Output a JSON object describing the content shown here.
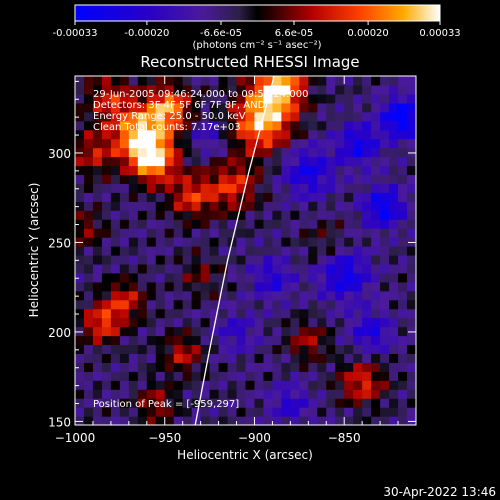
{
  "chart_data": {
    "type": "heatmap",
    "title": "Reconstructed RHESSI Image",
    "colorbar": {
      "ticks": [
        "-0.00033",
        "-0.00020",
        "-6.6e-05",
        "6.6e-05",
        "0.00020",
        "0.00033"
      ],
      "range": [
        -0.00033,
        0.00033
      ],
      "unit_label": "(photons cm⁻² s⁻¹ asec⁻²)"
    },
    "xlabel": "Heliocentric X (arcsec)",
    "ylabel": "Heliocentric Y (arcsec)",
    "xlim": [
      -1000,
      -810
    ],
    "ylim": [
      148,
      343
    ],
    "xticks": [
      -1000,
      -950,
      -900,
      -850
    ],
    "xtick_labels": [
      "−1000",
      "−950",
      "−900",
      "−850"
    ],
    "yticks": [
      150,
      200,
      250,
      300
    ],
    "yticks_labels": [
      "150",
      "200",
      "250",
      "300"
    ],
    "info_lines": [
      "29-Jun-2005 09:46:24.000 to 09:52:24.000",
      "Detectors: 3F 4F 5F 6F 7F 8F, AND",
      "Energy Range: 25.0 - 50.0 keV",
      "Clean    Total counts: 7.17e+03"
    ],
    "peak_label": "Position of Peak = [-959,297]",
    "peak": [
      -959,
      297
    ],
    "limb_curve": [
      [
        -933,
        148
      ],
      [
        -925,
        190
      ],
      [
        -915,
        240
      ],
      [
        -903,
        290
      ],
      [
        -889,
        343
      ]
    ],
    "hot_spots": [
      {
        "x": -964,
        "y": 310,
        "v": 0.00033,
        "s": 10
      },
      {
        "x": -956,
        "y": 296,
        "v": 0.00033,
        "s": 9
      },
      {
        "x": -948,
        "y": 325,
        "v": 0.0003,
        "s": 9
      },
      {
        "x": -896,
        "y": 318,
        "v": 0.00033,
        "s": 12
      },
      {
        "x": -886,
        "y": 338,
        "v": 0.00033,
        "s": 10
      },
      {
        "x": -912,
        "y": 282,
        "v": 0.0002,
        "s": 10
      },
      {
        "x": -935,
        "y": 276,
        "v": 0.0002,
        "s": 9
      },
      {
        "x": -980,
        "y": 330,
        "v": 0.00018,
        "s": 10
      },
      {
        "x": -990,
        "y": 300,
        "v": 0.00016,
        "s": 9
      },
      {
        "x": -985,
        "y": 205,
        "v": 0.00022,
        "s": 8
      },
      {
        "x": -972,
        "y": 218,
        "v": 0.00018,
        "s": 8
      },
      {
        "x": -940,
        "y": 188,
        "v": 0.00016,
        "s": 8
      },
      {
        "x": -955,
        "y": 160,
        "v": 0.00014,
        "s": 8
      },
      {
        "x": -840,
        "y": 172,
        "v": 0.0002,
        "s": 9
      },
      {
        "x": -870,
        "y": 195,
        "v": 0.00014,
        "s": 8
      },
      {
        "x": -995,
        "y": 258,
        "v": 0.00012,
        "s": 8
      },
      {
        "x": -930,
        "y": 232,
        "v": 0.0001,
        "s": 8
      },
      {
        "x": -860,
        "y": 250,
        "v": 8e-05,
        "s": 9
      }
    ],
    "cold_spots": [
      {
        "x": -818,
        "y": 320,
        "v": -0.0003,
        "s": 8
      },
      {
        "x": -842,
        "y": 305,
        "v": -0.00022,
        "s": 8
      },
      {
        "x": -828,
        "y": 270,
        "v": -0.00025,
        "s": 8
      },
      {
        "x": -870,
        "y": 290,
        "v": -0.0002,
        "s": 10
      },
      {
        "x": -850,
        "y": 232,
        "v": -0.00022,
        "s": 10
      },
      {
        "x": -835,
        "y": 200,
        "v": -0.00018,
        "s": 8
      },
      {
        "x": -890,
        "y": 230,
        "v": -0.00016,
        "s": 8
      },
      {
        "x": -880,
        "y": 160,
        "v": -0.00014,
        "s": 8
      },
      {
        "x": -910,
        "y": 200,
        "v": -0.00012,
        "s": 8
      },
      {
        "x": -925,
        "y": 310,
        "v": -0.00012,
        "s": 7
      }
    ]
  },
  "timestamp": "30-Apr-2022 13:46",
  "colors": {
    "background": "#000000",
    "text": "#ffffff",
    "limb_line": "#ffffff"
  }
}
